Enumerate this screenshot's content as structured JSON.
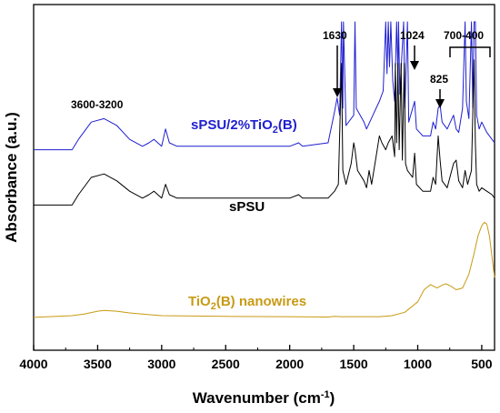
{
  "chart_data": {
    "type": "line",
    "xlabel": "Wavenumber (cm⁻¹)",
    "ylabel": "Absorbance (a.u.)",
    "xlim": [
      4000,
      400
    ],
    "x_reversed": true,
    "x_ticks": [
      4000,
      3500,
      3000,
      2500,
      2000,
      1500,
      1000,
      500
    ],
    "y_tick_labels": false,
    "colors": {
      "spsu_tio2": "#1f1fcf",
      "spsu": "#000000",
      "tio2": "#c89a14"
    },
    "series": [
      {
        "name": "sPSU/2%TiO₂(B)",
        "key": "spsu_tio2",
        "points": [
          [
            4000,
            0.58
          ],
          [
            3700,
            0.58
          ],
          [
            3650,
            0.61
          ],
          [
            3550,
            0.66
          ],
          [
            3450,
            0.67
          ],
          [
            3350,
            0.65
          ],
          [
            3250,
            0.61
          ],
          [
            3150,
            0.59
          ],
          [
            3100,
            0.6
          ],
          [
            3060,
            0.61
          ],
          [
            3000,
            0.59
          ],
          [
            2970,
            0.64
          ],
          [
            2940,
            0.6
          ],
          [
            2880,
            0.59
          ],
          [
            2000,
            0.59
          ],
          [
            1930,
            0.6
          ],
          [
            1900,
            0.59
          ],
          [
            1700,
            0.6
          ],
          [
            1650,
            0.69
          ],
          [
            1630,
            0.73
          ],
          [
            1610,
            0.68
          ],
          [
            1595,
            0.95
          ],
          [
            1585,
            0.7
          ],
          [
            1580,
            0.95
          ],
          [
            1560,
            0.65
          ],
          [
            1500,
            0.68
          ],
          [
            1490,
            0.95
          ],
          [
            1480,
            0.7
          ],
          [
            1420,
            0.66
          ],
          [
            1400,
            0.64
          ],
          [
            1350,
            0.68
          ],
          [
            1325,
            0.7
          ],
          [
            1300,
            0.72
          ],
          [
            1270,
            0.75
          ],
          [
            1250,
            0.95
          ],
          [
            1240,
            0.8
          ],
          [
            1230,
            0.95
          ],
          [
            1220,
            0.82
          ],
          [
            1210,
            0.95
          ],
          [
            1195,
            0.78
          ],
          [
            1180,
            0.72
          ],
          [
            1165,
            0.95
          ],
          [
            1155,
            0.8
          ],
          [
            1150,
            0.95
          ],
          [
            1140,
            0.74
          ],
          [
            1110,
            0.95
          ],
          [
            1100,
            0.7
          ],
          [
            1080,
            0.95
          ],
          [
            1070,
            0.66
          ],
          [
            1024,
            0.72
          ],
          [
            1010,
            0.64
          ],
          [
            960,
            0.62
          ],
          [
            900,
            0.62
          ],
          [
            880,
            0.66
          ],
          [
            860,
            0.64
          ],
          [
            840,
            0.7
          ],
          [
            825,
            0.71
          ],
          [
            810,
            0.66
          ],
          [
            770,
            0.64
          ],
          [
            720,
            0.68
          ],
          [
            700,
            0.64
          ],
          [
            680,
            0.63
          ],
          [
            650,
            0.7
          ],
          [
            630,
            0.95
          ],
          [
            620,
            0.72
          ],
          [
            600,
            0.67
          ],
          [
            580,
            0.95
          ],
          [
            570,
            0.7
          ],
          [
            560,
            0.95
          ],
          [
            550,
            0.95
          ],
          [
            540,
            0.68
          ],
          [
            520,
            0.64
          ],
          [
            500,
            0.66
          ],
          [
            460,
            0.63
          ],
          [
            420,
            0.61
          ],
          [
            400,
            0.6
          ]
        ]
      },
      {
        "name": "sPSU",
        "key": "spsu",
        "points": [
          [
            4000,
            0.42
          ],
          [
            3700,
            0.42
          ],
          [
            3650,
            0.45
          ],
          [
            3550,
            0.5
          ],
          [
            3450,
            0.51
          ],
          [
            3350,
            0.49
          ],
          [
            3250,
            0.46
          ],
          [
            3150,
            0.44
          ],
          [
            3100,
            0.45
          ],
          [
            3060,
            0.46
          ],
          [
            3000,
            0.44
          ],
          [
            2970,
            0.48
          ],
          [
            2940,
            0.45
          ],
          [
            2880,
            0.44
          ],
          [
            2000,
            0.44
          ],
          [
            1930,
            0.45
          ],
          [
            1900,
            0.44
          ],
          [
            1700,
            0.44
          ],
          [
            1650,
            0.46
          ],
          [
            1620,
            0.48
          ],
          [
            1595,
            0.83
          ],
          [
            1585,
            0.52
          ],
          [
            1560,
            0.48
          ],
          [
            1520,
            0.54
          ],
          [
            1500,
            0.6
          ],
          [
            1490,
            0.58
          ],
          [
            1470,
            0.52
          ],
          [
            1420,
            0.49
          ],
          [
            1400,
            0.47
          ],
          [
            1380,
            0.52
          ],
          [
            1360,
            0.48
          ],
          [
            1325,
            0.56
          ],
          [
            1300,
            0.62
          ],
          [
            1280,
            0.6
          ],
          [
            1250,
            0.58
          ],
          [
            1230,
            0.6
          ],
          [
            1200,
            0.62
          ],
          [
            1180,
            0.56
          ],
          [
            1175,
            0.83
          ],
          [
            1165,
            0.6
          ],
          [
            1155,
            0.83
          ],
          [
            1145,
            0.58
          ],
          [
            1130,
            0.83
          ],
          [
            1120,
            0.55
          ],
          [
            1105,
            0.83
          ],
          [
            1095,
            0.54
          ],
          [
            1080,
            0.52
          ],
          [
            1040,
            0.5
          ],
          [
            1024,
            0.57
          ],
          [
            1010,
            0.48
          ],
          [
            960,
            0.46
          ],
          [
            900,
            0.46
          ],
          [
            880,
            0.5
          ],
          [
            860,
            0.48
          ],
          [
            840,
            0.62
          ],
          [
            825,
            0.55
          ],
          [
            810,
            0.49
          ],
          [
            770,
            0.47
          ],
          [
            720,
            0.54
          ],
          [
            700,
            0.55
          ],
          [
            680,
            0.49
          ],
          [
            650,
            0.47
          ],
          [
            630,
            0.52
          ],
          [
            610,
            0.48
          ],
          [
            580,
            0.52
          ],
          [
            560,
            0.84
          ],
          [
            550,
            0.6
          ],
          [
            540,
            0.48
          ],
          [
            520,
            0.46
          ],
          [
            500,
            0.47
          ],
          [
            460,
            0.46
          ],
          [
            420,
            0.45
          ],
          [
            400,
            0.44
          ]
        ]
      },
      {
        "name": "TiO₂(B) nanowires",
        "key": "tio2",
        "points": [
          [
            4000,
            0.095
          ],
          [
            3700,
            0.1
          ],
          [
            3600,
            0.105
          ],
          [
            3500,
            0.113
          ],
          [
            3450,
            0.115
          ],
          [
            3350,
            0.113
          ],
          [
            3250,
            0.108
          ],
          [
            3100,
            0.103
          ],
          [
            3000,
            0.1
          ],
          [
            2500,
            0.098
          ],
          [
            2000,
            0.097
          ],
          [
            1700,
            0.096
          ],
          [
            1650,
            0.098
          ],
          [
            1600,
            0.097
          ],
          [
            1300,
            0.097
          ],
          [
            1200,
            0.1
          ],
          [
            1100,
            0.11
          ],
          [
            1000,
            0.14
          ],
          [
            950,
            0.175
          ],
          [
            900,
            0.19
          ],
          [
            850,
            0.18
          ],
          [
            800,
            0.19
          ],
          [
            780,
            0.192
          ],
          [
            740,
            0.185
          ],
          [
            700,
            0.175
          ],
          [
            650,
            0.18
          ],
          [
            600,
            0.22
          ],
          [
            560,
            0.28
          ],
          [
            530,
            0.33
          ],
          [
            500,
            0.36
          ],
          [
            480,
            0.37
          ],
          [
            460,
            0.365
          ],
          [
            440,
            0.33
          ],
          [
            420,
            0.27
          ],
          [
            400,
            0.21
          ]
        ]
      }
    ],
    "annotations": {
      "band_3600_3200": "3600-3200",
      "band_1630": "1630",
      "band_1024": "1024",
      "band_825": "825",
      "band_700_400": "700-400"
    },
    "series_labels": {
      "spsu_tio2": "sPSU/2%TiO",
      "spsu_tio2_sub": "2",
      "spsu_tio2_tail": "(B)",
      "spsu": "sPSU",
      "tio2": "TiO",
      "tio2_sub": "2",
      "tio2_tail": "(B) nanowires"
    },
    "axis_text": {
      "xlabel_main": "Wavenumber (cm",
      "xlabel_sup": "-1",
      "xlabel_tail": ")"
    }
  }
}
